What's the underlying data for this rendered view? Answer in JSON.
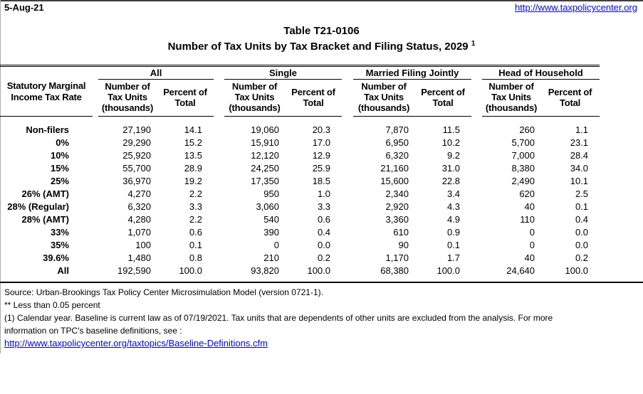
{
  "page": {
    "date": "5-Aug-21",
    "site_url": "http://www.taxpolicycenter.org"
  },
  "title": {
    "line1": "Table T21-0106",
    "line2": "Number of Tax Units by Tax Bracket and Filing Status, 2029",
    "footnote_marker": "1"
  },
  "colors": {
    "link_blue": "#0000EE",
    "text": "#000000",
    "background": "#ffffff"
  },
  "table": {
    "rate_header": "Statutory Marginal Income Tax Rate",
    "groups": [
      "All",
      "Single",
      "Married Filing Jointly",
      "Head of Household"
    ],
    "subheaders": {
      "number": "Number of Tax Units (thousands)",
      "percent": "Percent of Total"
    },
    "rows": [
      {
        "rate": "Non-filers",
        "values": [
          "27,190",
          "14.1",
          "19,060",
          "20.3",
          "7,870",
          "11.5",
          "260",
          "1.1"
        ]
      },
      {
        "rate": "0%",
        "values": [
          "29,290",
          "15.2",
          "15,910",
          "17.0",
          "6,950",
          "10.2",
          "5,700",
          "23.1"
        ]
      },
      {
        "rate": "10%",
        "values": [
          "25,920",
          "13.5",
          "12,120",
          "12.9",
          "6,320",
          "9.2",
          "7,000",
          "28.4"
        ]
      },
      {
        "rate": "15%",
        "values": [
          "55,700",
          "28.9",
          "24,250",
          "25.9",
          "21,160",
          "31.0",
          "8,380",
          "34.0"
        ]
      },
      {
        "rate": "25%",
        "values": [
          "36,970",
          "19.2",
          "17,350",
          "18.5",
          "15,600",
          "22.8",
          "2,490",
          "10.1"
        ]
      },
      {
        "rate": "26% (AMT)",
        "values": [
          "4,270",
          "2.2",
          "950",
          "1.0",
          "2,340",
          "3.4",
          "620",
          "2.5"
        ]
      },
      {
        "rate": "28% (Regular)",
        "values": [
          "6,320",
          "3.3",
          "3,060",
          "3.3",
          "2,920",
          "4.3",
          "40",
          "0.1"
        ]
      },
      {
        "rate": "28% (AMT)",
        "values": [
          "4,280",
          "2.2",
          "540",
          "0.6",
          "3,360",
          "4.9",
          "110",
          "0.4"
        ]
      },
      {
        "rate": "33%",
        "values": [
          "1,070",
          "0.6",
          "390",
          "0.4",
          "610",
          "0.9",
          "0",
          "0.0"
        ]
      },
      {
        "rate": "35%",
        "values": [
          "100",
          "0.1",
          "0",
          "0.0",
          "90",
          "0.1",
          "0",
          "0.0"
        ]
      },
      {
        "rate": "39.6%",
        "values": [
          "1,480",
          "0.8",
          "210",
          "0.2",
          "1,170",
          "1.7",
          "40",
          "0.2"
        ]
      },
      {
        "rate": "All",
        "values": [
          "192,590",
          "100.0",
          "93,820",
          "100.0",
          "68,380",
          "100.0",
          "24,640",
          "100.0"
        ]
      }
    ]
  },
  "footnotes": {
    "lines": [
      "Source: Urban-Brookings Tax Policy Center Microsimulation Model (version 0721-1).",
      "** Less than 0.05 percent",
      "(1) Calendar year. Baseline is current law as of 07/19/2021. Tax units that are dependents of other units are excluded from the analysis. For more",
      "information on TPC's baseline definitions, see :"
    ],
    "link": "http://www.taxpolicycenter.org/taxtopics/Baseline-Definitions.cfm"
  }
}
